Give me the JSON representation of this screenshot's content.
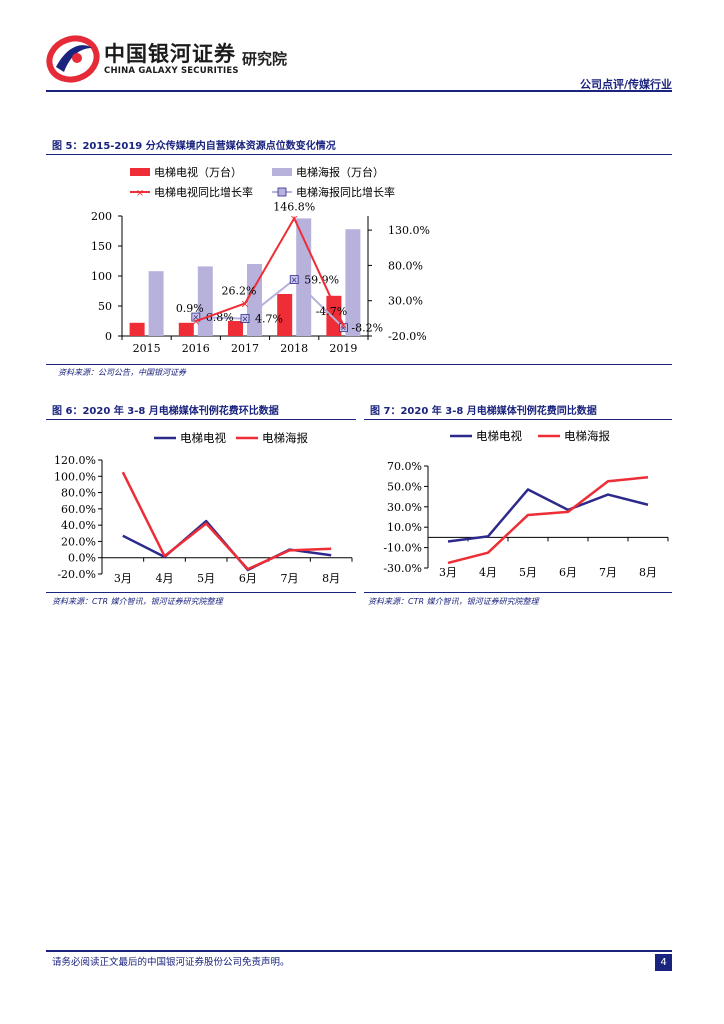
{
  "header": {
    "logo_cn": "中国银河证券",
    "logo_research": "研究院",
    "logo_en": "CHINA GALAXY SECURITIES",
    "category": "公司点评/传媒行业",
    "brand_color": "#1a237e",
    "logo_red": "#e52b38"
  },
  "fig5": {
    "title": "图 5：2015-2019 分众传媒境内自营媒体资源点位数变化情况",
    "source": "资料来源：公司公告，中国银河证券",
    "legend": [
      "电梯电视（万台）",
      "电梯海报（万台）",
      "电梯电视同比增长率",
      "电梯海报同比增长率"
    ]
  },
  "fig6": {
    "title": "图 6：2020 年 3-8 月电梯媒体刊例花费环比数据",
    "source": "资料来源：CTR 媒介智讯，银河证券研究院整理",
    "legend": [
      "电梯电视",
      "电梯海报"
    ]
  },
  "fig7": {
    "title": "图 7：2020 年 3-8 月电梯媒体刊例花费同比数据",
    "source": "资料来源：CTR 媒介智讯，银河证券研究院整理",
    "legend": [
      "电梯电视",
      "电梯海报"
    ]
  },
  "chart_data": [
    {
      "type": "bar",
      "categories": [
        "2015",
        "2016",
        "2017",
        "2018",
        "2019"
      ],
      "series": [
        {
          "name": "电梯电视（万台）",
          "kind": "bar",
          "axis": "left",
          "color": "#ee2d36",
          "values": [
            22,
            22,
            25,
            70,
            67
          ]
        },
        {
          "name": "电梯海报（万台）",
          "kind": "bar",
          "axis": "left",
          "color": "#b7b2dc",
          "values": [
            108,
            116,
            120,
            196,
            178
          ]
        },
        {
          "name": "电梯电视同比增长率",
          "kind": "line",
          "axis": "right",
          "color": "#ee2d36",
          "values": [
            null,
            0.9,
            26.2,
            146.8,
            -4.7
          ]
        },
        {
          "name": "电梯海报同比增长率",
          "kind": "line",
          "axis": "right",
          "color": "#b7b2dc",
          "values": [
            null,
            6.8,
            4.7,
            59.9,
            -8.2
          ]
        }
      ],
      "labels_tv": [
        "",
        "0.9%",
        "26.2%",
        "146.8%",
        "-4.7%"
      ],
      "labels_poster": [
        "",
        "6.8%",
        "4.7%",
        "59.9%",
        "-8.2%"
      ],
      "ylim_left": [
        0,
        200
      ],
      "yticks_left": [
        "0",
        "50",
        "100",
        "150",
        "200"
      ],
      "ylim_right": [
        -20,
        150
      ],
      "yticks_right": [
        "-20.0%",
        "30.0%",
        "80.0%",
        "130.0%"
      ]
    },
    {
      "type": "line",
      "categories": [
        "3月",
        "4月",
        "5月",
        "6月",
        "7月",
        "8月"
      ],
      "series": [
        {
          "name": "电梯电视",
          "color": "#2e2a8c",
          "values": [
            27,
            1,
            45,
            -15,
            10,
            3
          ]
        },
        {
          "name": "电梯海报",
          "color": "#ee2d36",
          "values": [
            105,
            2,
            42,
            -14,
            9,
            11
          ]
        }
      ],
      "ylim": [
        -20,
        120
      ],
      "yticks": [
        "-20.0%",
        "0.0%",
        "20.0%",
        "40.0%",
        "60.0%",
        "80.0%",
        "100.0%",
        "120.0%"
      ]
    },
    {
      "type": "line",
      "categories": [
        "3月",
        "4月",
        "5月",
        "6月",
        "7月",
        "8月"
      ],
      "series": [
        {
          "name": "电梯电视",
          "color": "#2e2a8c",
          "values": [
            -4,
            1,
            47,
            27,
            42,
            32
          ]
        },
        {
          "name": "电梯海报",
          "color": "#ee2d36",
          "values": [
            -25,
            -15,
            22,
            25,
            55,
            59
          ]
        }
      ],
      "ylim": [
        -30,
        70
      ],
      "yticks": [
        "-30.0%",
        "-10.0%",
        "10.0%",
        "30.0%",
        "50.0%",
        "70.0%"
      ]
    }
  ],
  "footer": {
    "disclaimer": "请务必阅读正文最后的中国银河证券股份公司免责声明。",
    "page": "4"
  }
}
